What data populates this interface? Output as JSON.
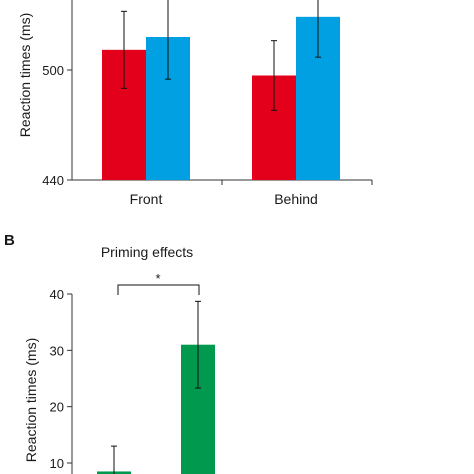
{
  "colors": {
    "red": "#e3001b",
    "blue": "#00a0e3",
    "green": "#00994d",
    "axis": "#333333"
  },
  "chart_data": [
    {
      "type": "bar",
      "panel_label": "",
      "title": "",
      "ylabel": "Reaction times (ms)",
      "ylim": [
        440,
        560
      ],
      "ticks": [
        "440",
        "500"
      ],
      "tick_values": [
        440,
        500
      ],
      "categories": [
        "Front",
        "Behind"
      ],
      "series": [
        {
          "color": "#e3001b",
          "values": [
            511,
            497
          ],
          "errors": [
            21,
            19
          ]
        },
        {
          "color": "#00a0e3",
          "values": [
            518,
            529
          ],
          "errors": [
            23,
            22
          ]
        }
      ]
    },
    {
      "type": "bar",
      "panel_label": "B",
      "title": "Priming effects",
      "ylabel": "Reaction times (ms)",
      "ylim": [
        5,
        40
      ],
      "ticks": [
        "10",
        "20",
        "30",
        "40"
      ],
      "tick_values": [
        10,
        20,
        30,
        40
      ],
      "categories": [
        "",
        ""
      ],
      "series": [
        {
          "color": "#00994d",
          "values": [
            8.5,
            31
          ],
          "errors": [
            4.5,
            7.7
          ]
        }
      ],
      "annotation": "*"
    }
  ]
}
